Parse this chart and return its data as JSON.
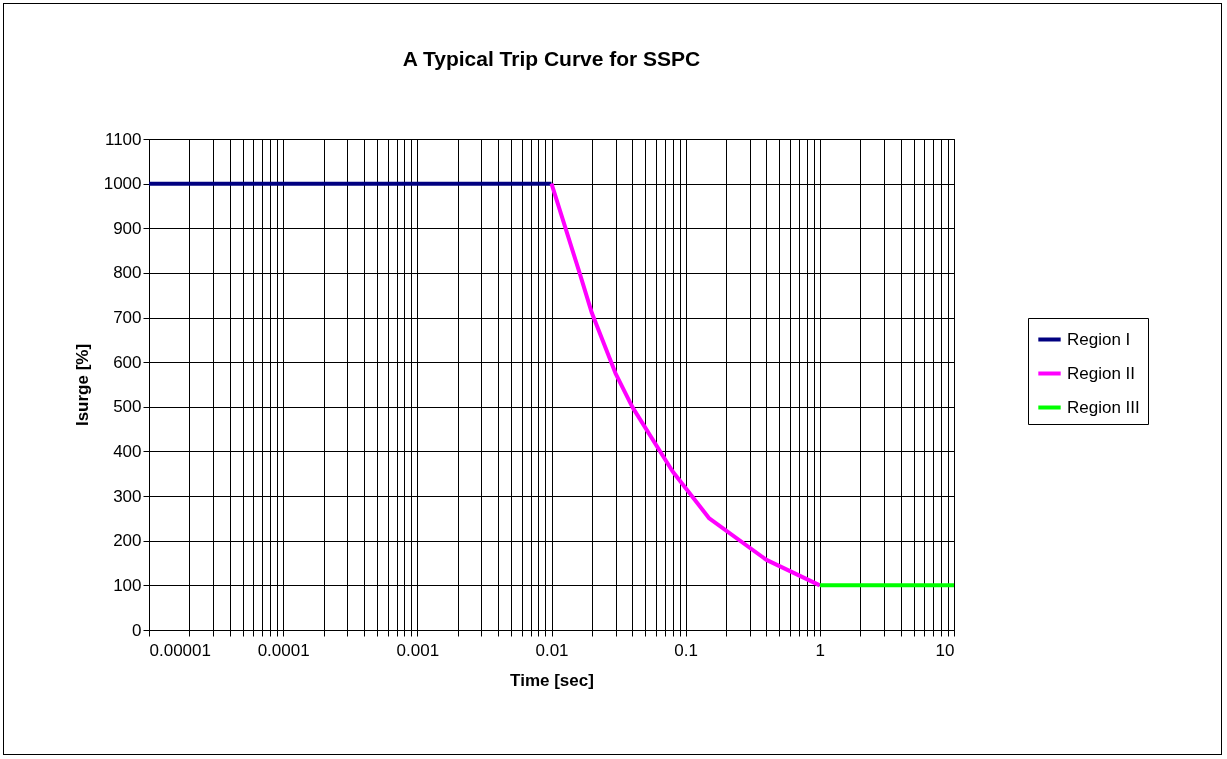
{
  "chart_data": {
    "type": "line",
    "title": "A Typical Trip Curve for SSPC",
    "xlabel": "Time [sec]",
    "ylabel": "Isurge [%]",
    "series": [
      {
        "name": "Region I",
        "color": "#000080",
        "x": [
          1e-05,
          0.01
        ],
        "values": [
          1000,
          1000
        ]
      },
      {
        "name": "Region II",
        "color": "#ff00ff",
        "x": [
          0.01,
          0.016,
          0.02,
          0.03,
          0.04,
          0.08,
          0.15,
          0.4,
          1
        ],
        "values": [
          1000,
          805,
          710,
          575,
          500,
          355,
          250,
          157,
          100
        ]
      },
      {
        "name": "Region III",
        "color": "#00ff00",
        "x": [
          1,
          10
        ],
        "values": [
          100,
          100
        ]
      }
    ],
    "log": "x",
    "xlim": [
      1e-05,
      10
    ],
    "xticks": [
      {
        "value": 1e-05,
        "label": "0.00001"
      },
      0.0001,
      0.001,
      0.01,
      0.1,
      1,
      10
    ],
    "ylim": [
      0,
      1100
    ],
    "yticks": [
      0,
      100,
      200,
      300,
      400,
      500,
      600,
      700,
      800,
      900,
      1000,
      1100
    ],
    "grid": true,
    "legend": "right",
    "marker": "none",
    "line_style": "solid"
  }
}
